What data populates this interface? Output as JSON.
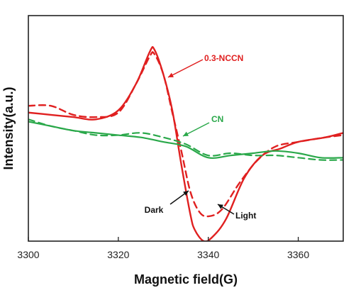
{
  "chart_data": {
    "type": "line",
    "title": "",
    "xlabel": "Magnetic field(G)",
    "ylabel": "Intensity(a.u.)",
    "xlim": [
      3300,
      3370
    ],
    "ylim": [
      0,
      100
    ],
    "xticks": [
      3300,
      3320,
      3340,
      3360
    ],
    "grid": false,
    "legend": "none",
    "colors": {
      "red": "#e02020",
      "green": "#2aa84a",
      "axis": "#222222",
      "annotation": "#111111"
    },
    "series": [
      {
        "name": "0.3-NCCN",
        "color": "#e02020",
        "style": "solid",
        "condition": "Light",
        "x": [
          3300,
          3305,
          3310,
          3315,
          3320,
          3324,
          3327,
          3328,
          3330,
          3332,
          3334,
          3336,
          3337,
          3339,
          3341,
          3344,
          3348,
          3352,
          3356,
          3360,
          3366,
          3370
        ],
        "y": [
          57,
          56,
          55,
          54,
          58,
          70,
          84,
          85,
          74,
          58,
          34,
          12,
          5,
          0,
          2,
          10,
          28,
          38,
          41,
          44,
          46,
          48
        ]
      },
      {
        "name": "0.3-NCCN",
        "color": "#e02020",
        "style": "dashed",
        "condition": "Dark",
        "x": [
          3300,
          3305,
          3310,
          3315,
          3320,
          3324,
          3327,
          3328,
          3330,
          3332,
          3334,
          3336,
          3338,
          3340,
          3343,
          3347,
          3351,
          3355,
          3360,
          3366,
          3370
        ],
        "y": [
          60,
          60,
          56,
          55,
          57,
          70,
          82,
          83,
          74,
          57,
          40,
          22,
          13,
          11,
          14,
          26,
          36,
          42,
          44,
          46,
          47
        ]
      },
      {
        "name": "CN",
        "color": "#2aa84a",
        "style": "solid",
        "condition": "Light",
        "x": [
          3300,
          3305,
          3310,
          3315,
          3320,
          3325,
          3330,
          3335,
          3340,
          3345,
          3350,
          3355,
          3360,
          3365,
          3370
        ],
        "y": [
          53,
          51,
          49,
          48,
          47,
          46,
          44,
          42,
          37,
          38,
          39,
          40,
          39,
          37,
          37
        ]
      },
      {
        "name": "CN",
        "color": "#2aa84a",
        "style": "dashed",
        "condition": "Dark",
        "x": [
          3300,
          3305,
          3310,
          3315,
          3320,
          3325,
          3330,
          3335,
          3340,
          3345,
          3350,
          3355,
          3360,
          3365,
          3370
        ],
        "y": [
          54,
          51,
          49,
          47,
          47,
          48,
          46,
          43,
          38,
          39,
          38,
          38,
          37,
          36,
          36
        ]
      }
    ],
    "annotations": {
      "red_label": "0.3-NCCN",
      "green_label": "CN",
      "dark_label": "Dark",
      "light_label": "Light"
    }
  }
}
